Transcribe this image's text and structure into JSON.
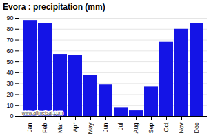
{
  "chart_data": {
    "type": "bar",
    "title": "Evora : precipitation (mm)",
    "categories": [
      "Jan",
      "Feb",
      "Mar",
      "Apr",
      "May",
      "Jun",
      "Jul",
      "Aug",
      "Sep",
      "Oct",
      "Nov",
      "Dec"
    ],
    "values": [
      88,
      85,
      57,
      56,
      38,
      29,
      8,
      5,
      27,
      68,
      80,
      85
    ],
    "color": "#1414e6",
    "ylim": [
      0,
      90
    ],
    "yticks": [
      0,
      10,
      20,
      30,
      40,
      50,
      60,
      70,
      80,
      90
    ],
    "grid": true,
    "annotations": [
      "www.allmetsat.com"
    ]
  }
}
